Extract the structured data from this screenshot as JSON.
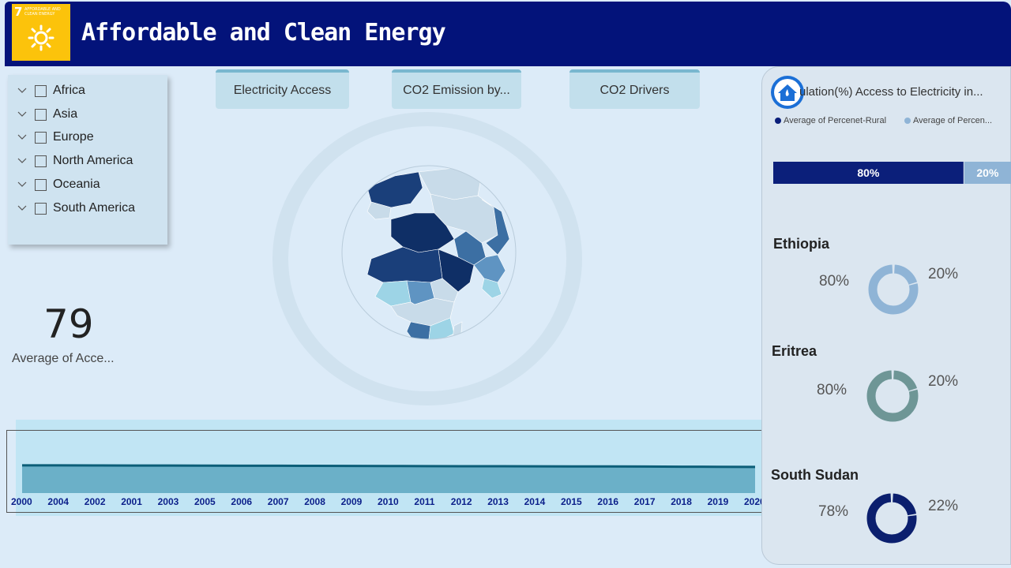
{
  "header": {
    "title": "Affordable and Clean Energy",
    "sdg_number": "7",
    "sdg_text": "AFFORDABLE AND CLEAN ENERGY",
    "badge_color": "#fcc30b",
    "bar_color": "#03137a"
  },
  "slicer": {
    "items": [
      "Africa",
      "Asia",
      "Europe",
      "North America",
      "Oceania",
      "South America"
    ]
  },
  "nav": {
    "electricity_access": "Electricity Access",
    "co2_emission": "CO2 Emission by...",
    "co2_drivers": "CO2 Drivers"
  },
  "kpi": {
    "value": "79",
    "label": "Average of Acce..."
  },
  "timeline": {
    "years": [
      "2000",
      "2004",
      "2002",
      "2001",
      "2003",
      "2005",
      "2006",
      "2007",
      "2008",
      "2009",
      "2010",
      "2011",
      "2012",
      "2013",
      "2014",
      "2015",
      "2016",
      "2017",
      "2018",
      "2019",
      "2020"
    ],
    "values": [
      82,
      82,
      81.8,
      81.6,
      81.5,
      81.2,
      81,
      80.8,
      80.6,
      80.4,
      80.2,
      79.8,
      79.6,
      79.4,
      79.2,
      79,
      78.8,
      78.5,
      78,
      77.8,
      77.5
    ]
  },
  "right_panel": {
    "title": "Population(%) Access to Electricity in...",
    "visible_title": "ulation(%) Access to Electricity in...",
    "legend": [
      {
        "label": "Average of Percenet-Rural",
        "color": "#0b1f7a"
      },
      {
        "label": "Average of Percen...",
        "color": "#8fb4d6"
      }
    ],
    "stacked": {
      "rural": 80,
      "other": 20,
      "rural_label": "80%",
      "other_label": "20%"
    },
    "countries": [
      {
        "name": "Ethiopia",
        "major": 80,
        "minor": 20,
        "major_label": "80%",
        "minor_label": "20%",
        "color": "#8fb4d6"
      },
      {
        "name": "Eritrea",
        "major": 80,
        "minor": 20,
        "major_label": "80%",
        "minor_label": "20%",
        "color": "#6e9696"
      },
      {
        "name": "South Sudan",
        "major": 78,
        "minor": 22,
        "major_label": "78%",
        "minor_label": "22%",
        "color": "#0b1f6e"
      }
    ]
  }
}
